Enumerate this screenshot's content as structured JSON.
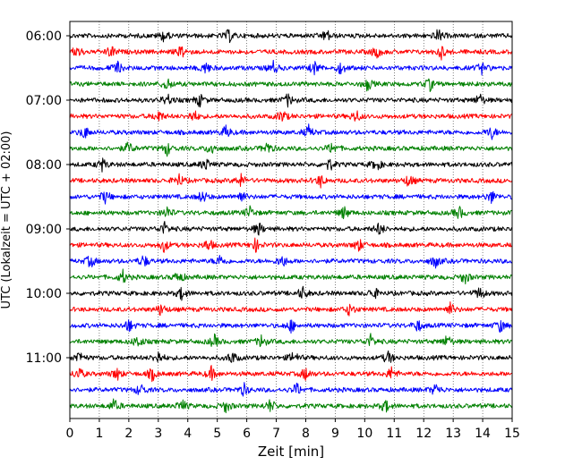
{
  "chart_data": {
    "type": "line",
    "title": "",
    "xlabel": "Zeit  [min]",
    "ylabel": "UTC (Lokalzeit = UTC + 02:00)",
    "xlim": [
      0,
      15
    ],
    "x_ticks": [
      "0",
      "1",
      "2",
      "3",
      "4",
      "5",
      "6",
      "7",
      "8",
      "9",
      "10",
      "11",
      "12",
      "13",
      "14",
      "15"
    ],
    "y_ticks": [
      "06:00",
      "07:00",
      "08:00",
      "09:00",
      "10:00",
      "11:00"
    ],
    "grid": "vertical dotted",
    "trace_interval_min": 15,
    "trace_colors": [
      "#000000",
      "#ff0000",
      "#0000ff",
      "#008000"
    ],
    "traces": [
      {
        "time": "06:00",
        "color": "#000000",
        "events_min": [
          3.2,
          5.4,
          8.7,
          12.5
        ]
      },
      {
        "time": "06:15",
        "color": "#ff0000",
        "events_min": [
          0.25,
          1.4,
          3.8,
          10.4,
          12.6
        ]
      },
      {
        "time": "06:30",
        "color": "#0000ff",
        "events_min": [
          1.6,
          4.6,
          6.9,
          8.3,
          9.2,
          14.0
        ]
      },
      {
        "time": "06:45",
        "color": "#008000",
        "events_min": [
          3.3,
          10.1,
          12.2
        ]
      },
      {
        "time": "07:00",
        "color": "#000000",
        "events_min": [
          3.3,
          4.4,
          7.4,
          13.9
        ]
      },
      {
        "time": "07:15",
        "color": "#ff0000",
        "events_min": [
          3.0,
          4.2,
          7.2,
          9.7
        ]
      },
      {
        "time": "07:30",
        "color": "#0000ff",
        "events_min": [
          0.5,
          5.3,
          8.1,
          14.3
        ]
      },
      {
        "time": "07:45",
        "color": "#008000",
        "events_min": [
          2.0,
          3.3,
          4.8,
          6.7,
          8.9
        ]
      },
      {
        "time": "08:00",
        "color": "#000000",
        "events_min": [
          1.1,
          4.6,
          8.8,
          10.4
        ]
      },
      {
        "time": "08:15",
        "color": "#ff0000",
        "events_min": [
          3.7,
          5.8,
          8.5,
          11.5
        ]
      },
      {
        "time": "08:30",
        "color": "#0000ff",
        "events_min": [
          1.2,
          4.5,
          5.8,
          14.3
        ]
      },
      {
        "time": "08:45",
        "color": "#008000",
        "events_min": [
          3.3,
          6.1,
          9.3,
          13.2
        ]
      },
      {
        "time": "09:00",
        "color": "#000000",
        "events_min": [
          3.2,
          6.4,
          10.5
        ]
      },
      {
        "time": "09:15",
        "color": "#ff0000",
        "events_min": [
          3.2,
          4.7,
          6.3,
          9.8
        ]
      },
      {
        "time": "09:30",
        "color": "#0000ff",
        "events_min": [
          0.7,
          2.5,
          5.1,
          7.2,
          12.4
        ]
      },
      {
        "time": "09:45",
        "color": "#008000",
        "events_min": [
          1.8,
          3.7,
          13.4
        ]
      },
      {
        "time": "10:00",
        "color": "#000000",
        "events_min": [
          3.8,
          7.9,
          10.3,
          13.9
        ]
      },
      {
        "time": "10:15",
        "color": "#ff0000",
        "events_min": [
          3.1,
          9.5,
          12.9
        ]
      },
      {
        "time": "10:30",
        "color": "#0000ff",
        "events_min": [
          2.0,
          7.5,
          11.8,
          14.6
        ]
      },
      {
        "time": "10:45",
        "color": "#008000",
        "events_min": [
          2.3,
          4.9,
          6.5,
          10.2,
          12.8
        ]
      },
      {
        "time": "11:00",
        "color": "#000000",
        "events_min": [
          0.3,
          3.0,
          5.5,
          7.6,
          10.8
        ]
      },
      {
        "time": "11:15",
        "color": "#ff0000",
        "events_min": [
          0.3,
          1.6,
          2.8,
          4.8,
          8.0,
          10.9
        ]
      },
      {
        "time": "11:30",
        "color": "#0000ff",
        "events_min": [
          2.4,
          5.9,
          7.7,
          12.4
        ]
      },
      {
        "time": "11:45",
        "color": "#008000",
        "events_min": [
          1.5,
          3.8,
          5.3,
          6.8,
          10.7
        ]
      }
    ]
  }
}
